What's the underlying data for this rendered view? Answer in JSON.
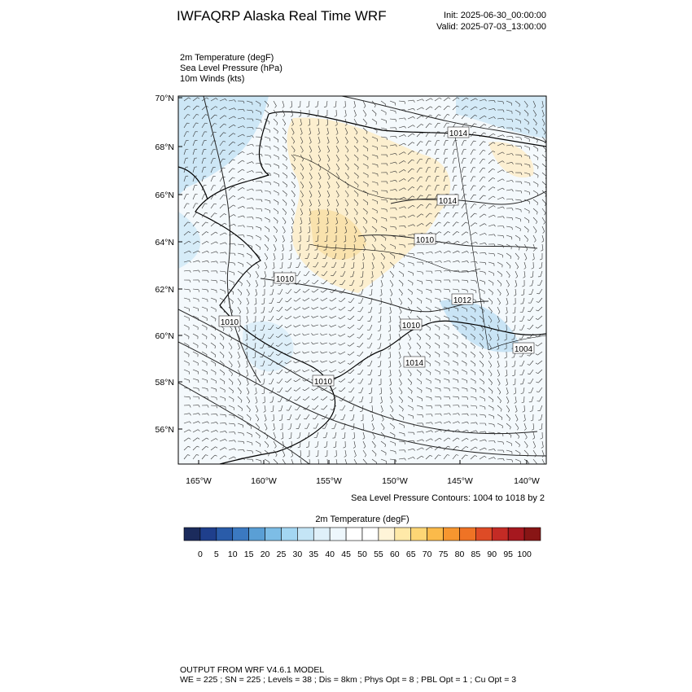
{
  "header": {
    "title": "IWFAQRP Alaska Real Time WRF",
    "init": "Init: 2025-06-30_00:00:00",
    "valid": "Valid: 2025-07-03_13:00:00",
    "fields": [
      "2m Temperature   (degF)",
      "Sea Level Pressure   (hPa)",
      "10m Winds   (kts)"
    ]
  },
  "map": {
    "lat_labels": [
      "70°N",
      "68°N",
      "66°N",
      "64°N",
      "62°N",
      "60°N",
      "58°N",
      "56°N"
    ],
    "lon_labels": [
      "165°W",
      "160°W",
      "155°W",
      "150°W",
      "145°W",
      "140°W"
    ],
    "contour_labels": [
      "1014",
      "1014",
      "1010",
      "1010",
      "1012",
      "1010",
      "1010",
      "1014",
      "1004",
      "1010"
    ],
    "contour_note": "Sea Level Pressure Contours: 1004 to 1018 by 2"
  },
  "colorbar": {
    "title": "2m Temperature  (degF)",
    "labels": [
      0,
      5,
      10,
      15,
      20,
      25,
      30,
      35,
      40,
      45,
      50,
      55,
      60,
      65,
      70,
      75,
      80,
      85,
      90,
      95,
      100
    ],
    "colors": [
      "#1b2b5c",
      "#1f3f8c",
      "#2a5ca9",
      "#3b79c1",
      "#5a9fd5",
      "#7dbde6",
      "#a3d6f2",
      "#c4e5f6",
      "#dff0f9",
      "#eef7fc",
      "#ffffff",
      "#ffffff",
      "#fff4d8",
      "#ffe9a8",
      "#fdd675",
      "#fbba4a",
      "#f7962f",
      "#ef7325",
      "#de4b26",
      "#c42b25",
      "#a6181f",
      "#881515"
    ]
  },
  "footer": {
    "line1": "OUTPUT FROM WRF V4.6.1 MODEL",
    "line2": "WE = 225 ; SN = 225 ; Levels = 38 ; Dis = 8km ; Phys Opt = 8 ; PBL Opt = 1 ; Cu Opt = 3"
  }
}
